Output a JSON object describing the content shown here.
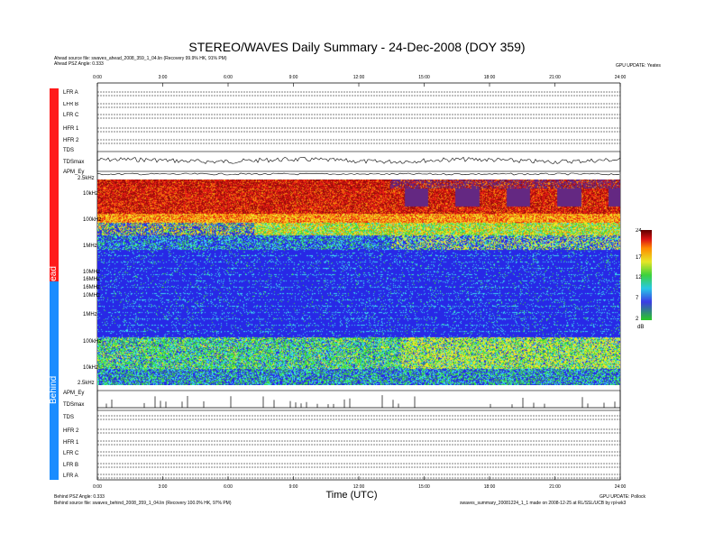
{
  "title": "STEREO/WAVES Daily Summary - 24-Dec-2008 (DOY 359)",
  "header_lines": [
    "Ahead source file: swaves_ahead_2008_359_1_04.lin (Recovery 99.9% HK, 91% PM)",
    "Ahead PSZ Angle: 0.333 "
  ],
  "header_right": "GPU UPDATE: Yeates",
  "footer_left_lines": [
    "Behind PSZ Angle: 0.333",
    "Behind source file: swaves_behind_2008_359_1_04.lin (Recovery 100.0% HK, 97% PM)"
  ],
  "footer_right_lines": [
    "GPU UPDATE: Pollock",
    "swaves_summary_20081224_1_1 made on 2008-12-25 at RL/SSL/UCB by rpl-wk3"
  ],
  "xlabel": "Time (UTC)",
  "time_ticks": [
    "0:00",
    "3:00",
    "6:00",
    "9:00",
    "12:00",
    "15:00",
    "18:00",
    "21:00",
    "24:00"
  ],
  "section_labels": {
    "ahead": "Ahead",
    "behind": "Behind"
  },
  "colors": {
    "ahead": "#ff1a1a",
    "behind": "#1a8cff"
  },
  "ahead_rows": [
    "LFR A",
    "LFR B",
    "LFR C",
    "HFR 1",
    "HFR 2",
    "TDS",
    "TDSmax",
    "APM_Ey"
  ],
  "behind_rows": [
    "APM_Ey",
    "TDSmax",
    "TDS",
    "HFR 2",
    "HFR 1",
    "LFR C",
    "LFR B",
    "LFR A"
  ],
  "freq_labels": [
    "2.5kHz",
    "10kHz",
    "100kHz",
    "1MHz",
    "10MHz",
    "16MHz",
    "16MHz",
    "10MHz",
    "1MHz",
    "100kHz",
    "10kHz",
    "2.5kHz"
  ],
  "colorbar": {
    "unit": "dB",
    "ticks": [
      "24",
      "17",
      "12",
      "7",
      "2"
    ]
  },
  "chart_data": {
    "type": "heatmap",
    "title": "STEREO/WAVES Daily Summary - 24-Dec-2008 (DOY 359)",
    "xlabel": "Time (UTC)",
    "ylabel": "",
    "xlim": [
      0,
      24
    ],
    "x_ticks": [
      "0:00",
      "3:00",
      "6:00",
      "9:00",
      "12:00",
      "15:00",
      "18:00",
      "21:00",
      "24:00"
    ],
    "panels": [
      {
        "name": "Ahead",
        "freq_range": [
          "2.5kHz",
          "16MHz"
        ],
        "intensity_range_dB": [
          2,
          24
        ]
      },
      {
        "name": "Behind",
        "freq_range": [
          "16MHz",
          "2.5kHz"
        ],
        "intensity_range_dB": [
          2,
          24
        ]
      }
    ],
    "colorbar_unit": "dB",
    "colorbar_ticks": [
      24,
      17,
      12,
      7,
      2
    ]
  }
}
